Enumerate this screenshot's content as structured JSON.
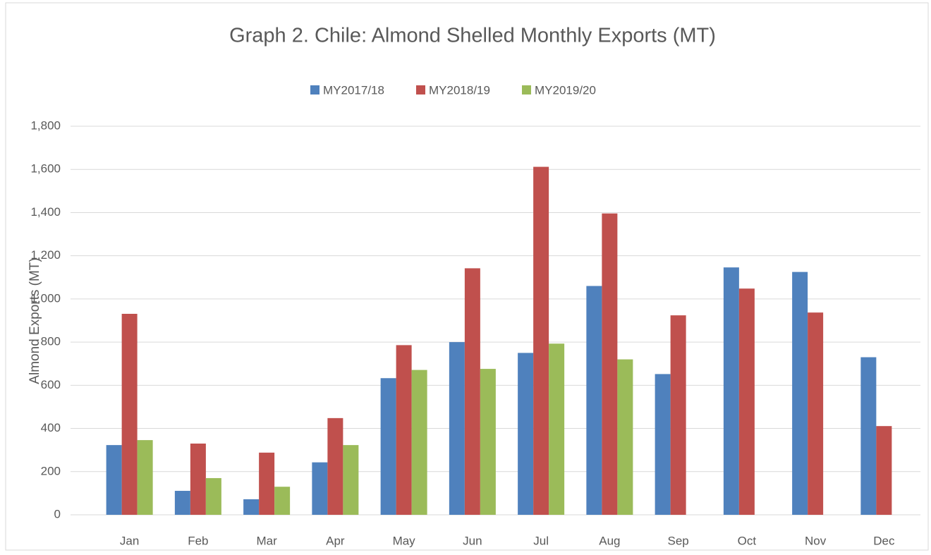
{
  "chart_data": {
    "type": "bar",
    "title": "Graph 2. Chile: Almond Shelled Monthly Exports (MT)",
    "y_label": "Almond Exports (MT)",
    "categories": [
      "Jan",
      "Feb",
      "Mar",
      "Apr",
      "May",
      "Jun",
      "Jul",
      "Aug",
      "Sep",
      "Oct",
      "Nov",
      "Dec"
    ],
    "series": [
      {
        "name": "MY2017/18",
        "color": "#4f81bd",
        "values": [
          323,
          111,
          72,
          243,
          633,
          800,
          750,
          1060,
          652,
          1146,
          1125,
          730
        ]
      },
      {
        "name": "MY2018/19",
        "color": "#c0504d",
        "values": [
          931,
          330,
          288,
          448,
          786,
          1142,
          1612,
          1396,
          924,
          1048,
          937,
          411
        ]
      },
      {
        "name": "MY2019/20",
        "color": "#9bbb59",
        "values": [
          346,
          170,
          130,
          323,
          671,
          676,
          793,
          720,
          null,
          null,
          null,
          null
        ]
      }
    ],
    "ylim": [
      0,
      1800
    ],
    "yticks": [
      0,
      200,
      400,
      600,
      800,
      {
        "value": 1000,
        "label": "1,000"
      },
      {
        "value": 1200,
        "label": "1,200"
      },
      {
        "value": 1400,
        "label": "1,400"
      },
      {
        "value": 1600,
        "label": "1,600"
      },
      {
        "value": 1800,
        "label": "1,800"
      }
    ],
    "grid": true,
    "legend": "top"
  }
}
